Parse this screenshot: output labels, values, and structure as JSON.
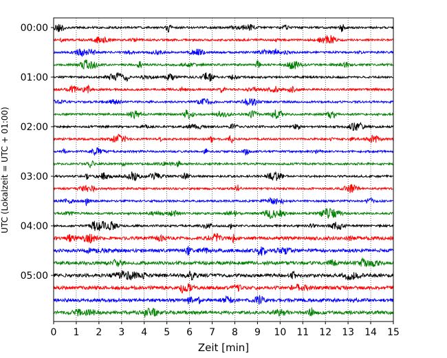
{
  "chart_data": {
    "type": "line",
    "subtype": "helicorder",
    "title": "",
    "xlabel": "Zeit  [min]",
    "ylabel": "UTC (Lokalzeit = UTC + 01:00)",
    "xlim": [
      0,
      15
    ],
    "x_ticks": [
      "0",
      "1",
      "2",
      "3",
      "4",
      "5",
      "6",
      "7",
      "8",
      "9",
      "10",
      "11",
      "12",
      "13",
      "14",
      "15"
    ],
    "y_ticks": [
      "00:00",
      "01:00",
      "02:00",
      "03:00",
      "04:00",
      "05:00"
    ],
    "trace_minutes": 15,
    "trace_count": 24,
    "vertical_grid": true,
    "grid_style": "dotted",
    "trace_colors": [
      "#000000",
      "#ff0000",
      "#0000ff",
      "#008000"
    ]
  }
}
